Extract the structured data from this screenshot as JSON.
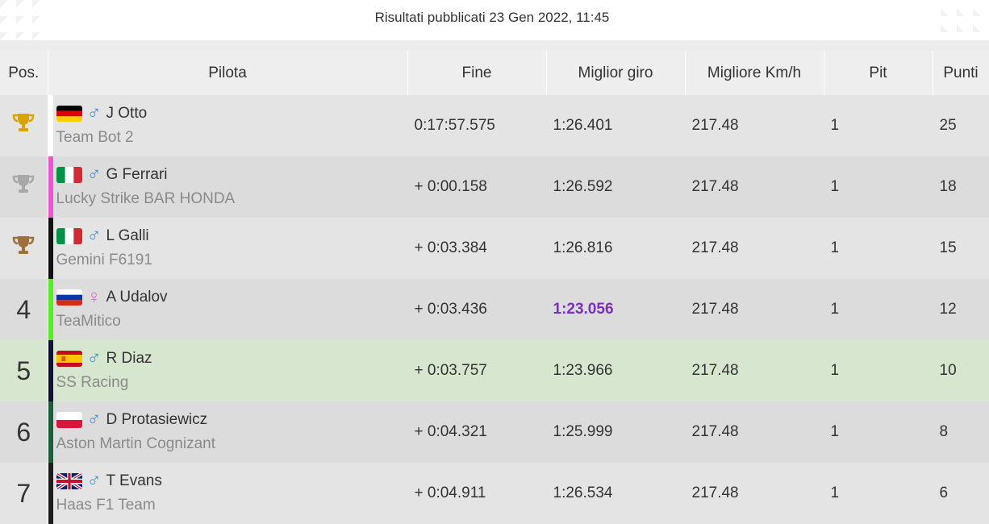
{
  "header": {
    "published": "Risultati pubblicati 23 Gen 2022, 11:45"
  },
  "columns": {
    "pos": "Pos.",
    "pilot": "Pilota",
    "finish": "Fine",
    "best_lap": "Miglior giro",
    "best_kmh": "Migliore Km/h",
    "pit": "Pit",
    "points": "Punti"
  },
  "colors": {
    "gold": "#d9a400",
    "silver": "#a8a8a8",
    "bronze": "#a0703a",
    "best_lap": "#7b2fbd",
    "highlight_row": "#d6e6cf"
  },
  "rows": [
    {
      "pos": "",
      "trophy": "gold",
      "flag": "germany",
      "gender": "♂",
      "name": "J Otto",
      "team": "Team Bot 2",
      "team_color": "#ffffff",
      "finish": "0:17:57.575",
      "best_lap": "1:26.401",
      "kmh": "217.48",
      "pit": "1",
      "points": "25"
    },
    {
      "pos": "",
      "trophy": "silver",
      "flag": "italy",
      "gender": "♂",
      "name": "G Ferrari",
      "team": "Lucky Strike BAR HONDA",
      "team_color": "#ee55cc",
      "finish": "+ 0:00.158",
      "best_lap": "1:26.592",
      "kmh": "217.48",
      "pit": "1",
      "points": "18"
    },
    {
      "pos": "",
      "trophy": "bronze",
      "flag": "italy",
      "gender": "♂",
      "name": "L Galli",
      "team": "Gemini F6191",
      "team_color": "#111111",
      "finish": "+ 0:03.384",
      "best_lap": "1:26.816",
      "kmh": "217.48",
      "pit": "1",
      "points": "15"
    },
    {
      "pos": "4",
      "trophy": "",
      "flag": "russia",
      "gender": "♀",
      "name": "A Udalov",
      "team": "TeaMitico",
      "team_color": "#55ee22",
      "finish": "+ 0:03.436",
      "best_lap": "1:23.056",
      "kmh": "217.48",
      "pit": "1",
      "points": "12"
    },
    {
      "pos": "5",
      "trophy": "",
      "flag": "spain",
      "gender": "♂",
      "name": "R Diaz",
      "team": "SS Racing",
      "team_color": "#111133",
      "finish": "+ 0:03.757",
      "best_lap": "1:23.966",
      "kmh": "217.48",
      "pit": "1",
      "points": "10"
    },
    {
      "pos": "6",
      "trophy": "",
      "flag": "poland",
      "gender": "♂",
      "name": "D Protasiewicz",
      "team": "Aston Martin Cognizant",
      "team_color": "#1f5c3a",
      "finish": "+ 0:04.321",
      "best_lap": "1:25.999",
      "kmh": "217.48",
      "pit": "1",
      "points": "8"
    },
    {
      "pos": "7",
      "trophy": "",
      "flag": "uk",
      "gender": "♂",
      "name": "T Evans",
      "team": "Haas F1 Team",
      "team_color": "#1c1c1c",
      "finish": "+ 0:04.911",
      "best_lap": "1:26.534",
      "kmh": "217.48",
      "pit": "1",
      "points": "6"
    }
  ]
}
